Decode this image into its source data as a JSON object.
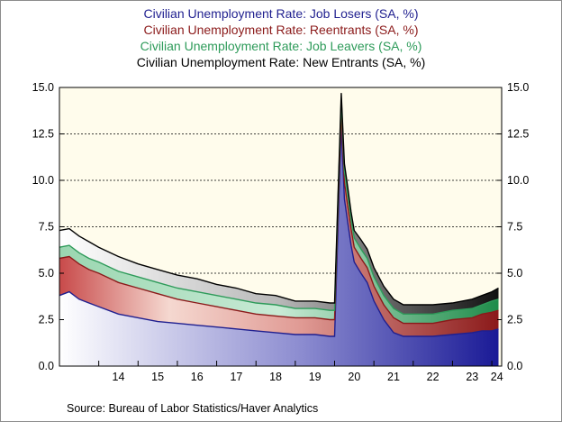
{
  "chart_data": {
    "type": "area",
    "stacked": true,
    "legend_position": "top",
    "xlabel": "",
    "ylabel": "",
    "ylim": [
      0,
      15
    ],
    "yticks": [
      "15.0",
      "12.5",
      "10.0",
      "7.5",
      "5.0",
      "2.5",
      "0.0"
    ],
    "xtick_labels": [
      "14",
      "15",
      "16",
      "17",
      "18",
      "19",
      "20",
      "21",
      "22",
      "23",
      "24"
    ],
    "grid": "horizontal dashed",
    "background_color": "#fffcec",
    "source": "Source:  Bureau of Labor Statistics/Haver Analytics",
    "x": [
      2013.0,
      2013.25,
      2013.5,
      2013.75,
      2014.0,
      2014.5,
      2015.0,
      2015.5,
      2016.0,
      2016.5,
      2017.0,
      2017.5,
      2018.0,
      2018.5,
      2019.0,
      2019.5,
      2019.88,
      2020.0,
      2020.17,
      2020.25,
      2020.33,
      2020.42,
      2020.5,
      2020.67,
      2020.83,
      2021.0,
      2021.25,
      2021.5,
      2021.75,
      2022.0,
      2022.5,
      2023.0,
      2023.5,
      2023.75,
      2024.0,
      2024.17
    ],
    "series": [
      {
        "name": "Civilian Unemployment Rate: Job Losers (SA, %)",
        "color": "#1f1f8f",
        "values": [
          3.8,
          4.0,
          3.6,
          3.4,
          3.2,
          2.8,
          2.6,
          2.4,
          2.3,
          2.2,
          2.1,
          2.0,
          1.9,
          1.8,
          1.7,
          1.7,
          1.6,
          1.6,
          13.0,
          9.0,
          7.8,
          6.5,
          5.6,
          5.0,
          4.5,
          3.5,
          2.5,
          1.8,
          1.6,
          1.6,
          1.6,
          1.7,
          1.8,
          1.9,
          1.9,
          2.0
        ]
      },
      {
        "name": "Civilian Unemployment Rate: Reentrants (SA, %)",
        "color": "#8b1a1a",
        "values": [
          2.0,
          1.9,
          1.9,
          1.8,
          1.8,
          1.7,
          1.6,
          1.5,
          1.3,
          1.2,
          1.1,
          1.0,
          0.9,
          0.9,
          0.9,
          0.9,
          0.9,
          0.9,
          0.7,
          0.9,
          0.9,
          0.9,
          0.8,
          0.8,
          0.8,
          0.8,
          0.8,
          0.8,
          0.7,
          0.7,
          0.7,
          0.8,
          0.8,
          0.9,
          1.0,
          1.0
        ]
      },
      {
        "name": "Civilian Unemployment Rate: Job Leavers (SA, %)",
        "color": "#2e9b5a",
        "values": [
          0.6,
          0.6,
          0.6,
          0.6,
          0.6,
          0.6,
          0.6,
          0.6,
          0.6,
          0.6,
          0.6,
          0.6,
          0.6,
          0.6,
          0.5,
          0.5,
          0.5,
          0.5,
          0.7,
          0.6,
          0.6,
          0.5,
          0.5,
          0.5,
          0.5,
          0.5,
          0.5,
          0.5,
          0.5,
          0.5,
          0.5,
          0.5,
          0.5,
          0.5,
          0.6,
          0.6
        ]
      },
      {
        "name": "Civilian Unemployment Rate: New Entrants (SA, %)",
        "color": "#000000",
        "values": [
          0.9,
          0.9,
          0.9,
          0.9,
          0.8,
          0.8,
          0.7,
          0.7,
          0.7,
          0.7,
          0.6,
          0.6,
          0.5,
          0.5,
          0.4,
          0.4,
          0.4,
          0.4,
          0.3,
          0.4,
          0.4,
          0.4,
          0.4,
          0.5,
          0.5,
          0.5,
          0.5,
          0.5,
          0.5,
          0.5,
          0.5,
          0.4,
          0.5,
          0.5,
          0.5,
          0.6
        ]
      }
    ]
  }
}
